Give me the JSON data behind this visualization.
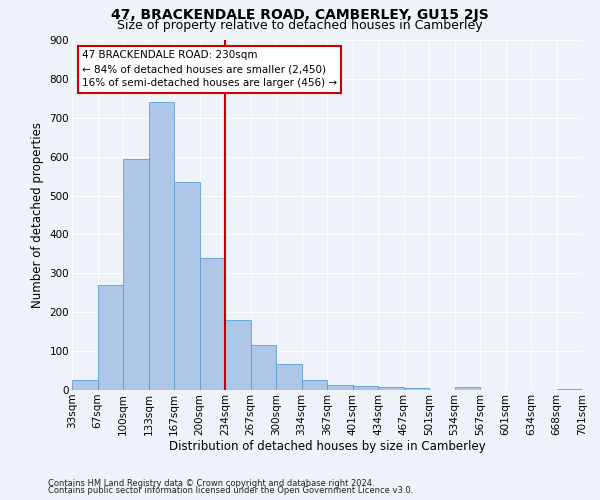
{
  "title": "47, BRACKENDALE ROAD, CAMBERLEY, GU15 2JS",
  "subtitle": "Size of property relative to detached houses in Camberley",
  "xlabel": "Distribution of detached houses by size in Camberley",
  "ylabel": "Number of detached properties",
  "bar_values": [
    25,
    270,
    595,
    740,
    535,
    340,
    180,
    115,
    68,
    25,
    12,
    10,
    8,
    5,
    0,
    7,
    0,
    0,
    0,
    3
  ],
  "bar_labels": [
    "33sqm",
    "67sqm",
    "100sqm",
    "133sqm",
    "167sqm",
    "200sqm",
    "234sqm",
    "267sqm",
    "300sqm",
    "334sqm",
    "367sqm",
    "401sqm",
    "434sqm",
    "467sqm",
    "501sqm",
    "534sqm",
    "567sqm",
    "601sqm",
    "634sqm",
    "668sqm",
    "701sqm"
  ],
  "bar_color": "#aec6e8",
  "bar_edge_color": "#5a9fd4",
  "property_line_x": 5.5,
  "annotation_title": "47 BRACKENDALE ROAD: 230sqm",
  "annotation_line1": "← 84% of detached houses are smaller (2,450)",
  "annotation_line2": "16% of semi-detached houses are larger (456) →",
  "annotation_box_color": "#ffffff",
  "annotation_box_edge": "#cc0000",
  "vline_color": "#cc0000",
  "ylim": [
    0,
    900
  ],
  "yticks": [
    0,
    100,
    200,
    300,
    400,
    500,
    600,
    700,
    800,
    900
  ],
  "footnote1": "Contains HM Land Registry data © Crown copyright and database right 2024.",
  "footnote2": "Contains public sector information licensed under the Open Government Licence v3.0.",
  "bg_color": "#eef2f9",
  "grid_color": "#ffffff",
  "title_fontsize": 10,
  "subtitle_fontsize": 9,
  "xlabel_fontsize": 8.5,
  "ylabel_fontsize": 8.5,
  "tick_fontsize": 7.5,
  "annot_fontsize": 7.5,
  "footnote_fontsize": 6
}
